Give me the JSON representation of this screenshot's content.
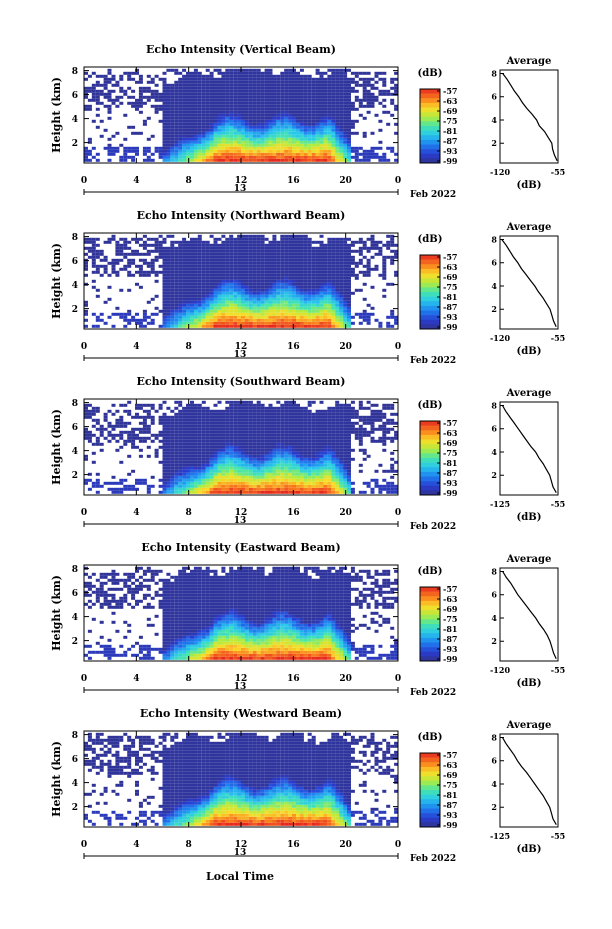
{
  "figure": {
    "xlabel": "Local Time",
    "date_label": "Feb 2022",
    "ylabel": "Height (km)",
    "colorbar_unit": "(dB)",
    "average_title": "Average",
    "average_unit": "(dB)"
  },
  "chart_data": [
    {
      "type": "heatmap",
      "title": "Echo Intensity (Vertical Beam)",
      "x_ticks": [
        "0",
        "4",
        "8",
        "12",
        "16",
        "20",
        "0"
      ],
      "day_marker": "13",
      "y_ticks": [
        "2",
        "4",
        "6",
        "8"
      ],
      "xlim": [
        0,
        24
      ],
      "ylim": [
        0.3,
        8.3
      ],
      "colorbar_ticks": [
        "-57",
        "-63",
        "-69",
        "-75",
        "-81",
        "-87",
        "-93",
        "-99"
      ],
      "color_range_db": [
        -99,
        -57
      ],
      "average": {
        "x_ticks": [
          "-120",
          "-55"
        ],
        "xlim": [
          -120,
          -55
        ],
        "ylim": [
          0.3,
          8.3
        ],
        "profile": [
          [
            0.5,
            -56
          ],
          [
            1,
            -59
          ],
          [
            1.5,
            -61
          ],
          [
            2,
            -62
          ],
          [
            2.5,
            -66
          ],
          [
            3,
            -70
          ],
          [
            3.5,
            -76
          ],
          [
            4,
            -79
          ],
          [
            4.5,
            -84
          ],
          [
            5,
            -90
          ],
          [
            5.5,
            -95
          ],
          [
            6,
            -99
          ],
          [
            6.5,
            -104
          ],
          [
            7,
            -108
          ],
          [
            7.5,
            -112
          ],
          [
            8,
            -117
          ]
        ]
      }
    },
    {
      "type": "heatmap",
      "title": "Echo Intensity (Northward Beam)",
      "x_ticks": [
        "0",
        "4",
        "8",
        "12",
        "16",
        "20",
        "0"
      ],
      "day_marker": "13",
      "y_ticks": [
        "2",
        "4",
        "6",
        "8"
      ],
      "xlim": [
        0,
        24
      ],
      "ylim": [
        0.3,
        8.3
      ],
      "colorbar_ticks": [
        "-57",
        "-63",
        "-69",
        "-75",
        "-81",
        "-87",
        "-93",
        "-99"
      ],
      "color_range_db": [
        -99,
        -57
      ],
      "average": {
        "x_ticks": [
          "-120",
          "-55"
        ],
        "xlim": [
          -120,
          -55
        ],
        "ylim": [
          0.3,
          8.3
        ],
        "profile": [
          [
            0.5,
            -57
          ],
          [
            1,
            -60
          ],
          [
            1.5,
            -62
          ],
          [
            2,
            -64
          ],
          [
            2.5,
            -68
          ],
          [
            3,
            -72
          ],
          [
            3.5,
            -77
          ],
          [
            4,
            -81
          ],
          [
            4.5,
            -86
          ],
          [
            5,
            -91
          ],
          [
            5.5,
            -96
          ],
          [
            6,
            -100
          ],
          [
            6.5,
            -105
          ],
          [
            7,
            -109
          ],
          [
            7.5,
            -113
          ],
          [
            8,
            -118
          ]
        ]
      }
    },
    {
      "type": "heatmap",
      "title": "Echo Intensity (Southward Beam)",
      "x_ticks": [
        "0",
        "4",
        "8",
        "12",
        "16",
        "20",
        "0"
      ],
      "day_marker": "13",
      "y_ticks": [
        "2",
        "4",
        "6",
        "8"
      ],
      "xlim": [
        0,
        24
      ],
      "ylim": [
        0.3,
        8.3
      ],
      "colorbar_ticks": [
        "-57",
        "-63",
        "-69",
        "-75",
        "-81",
        "-87",
        "-93",
        "-99"
      ],
      "color_range_db": [
        -99,
        -57
      ],
      "average": {
        "x_ticks": [
          "-125",
          "-55"
        ],
        "xlim": [
          -125,
          -55
        ],
        "ylim": [
          0.3,
          8.3
        ],
        "profile": [
          [
            0.5,
            -57
          ],
          [
            1,
            -61
          ],
          [
            1.5,
            -63
          ],
          [
            2,
            -65
          ],
          [
            2.5,
            -69
          ],
          [
            3,
            -73
          ],
          [
            3.5,
            -78
          ],
          [
            4,
            -82
          ],
          [
            4.5,
            -88
          ],
          [
            5,
            -93
          ],
          [
            5.5,
            -98
          ],
          [
            6,
            -103
          ],
          [
            6.5,
            -108
          ],
          [
            7,
            -113
          ],
          [
            7.5,
            -118
          ],
          [
            8,
            -122
          ]
        ]
      }
    },
    {
      "type": "heatmap",
      "title": "Echo Intensity (Eastward Beam)",
      "x_ticks": [
        "0",
        "4",
        "8",
        "12",
        "16",
        "20",
        "0"
      ],
      "day_marker": "13",
      "y_ticks": [
        "2",
        "4",
        "6",
        "8"
      ],
      "xlim": [
        0,
        24
      ],
      "ylim": [
        0.3,
        8.3
      ],
      "colorbar_ticks": [
        "-57",
        "-63",
        "-69",
        "-75",
        "-81",
        "-87",
        "-93",
        "-99"
      ],
      "color_range_db": [
        -99,
        -57
      ],
      "average": {
        "x_ticks": [
          "-120",
          "-55"
        ],
        "xlim": [
          -120,
          -55
        ],
        "ylim": [
          0.3,
          8.3
        ],
        "profile": [
          [
            0.5,
            -57
          ],
          [
            1,
            -60
          ],
          [
            1.5,
            -62
          ],
          [
            2,
            -64
          ],
          [
            2.5,
            -67
          ],
          [
            3,
            -71
          ],
          [
            3.5,
            -76
          ],
          [
            4,
            -80
          ],
          [
            4.5,
            -85
          ],
          [
            5,
            -90
          ],
          [
            5.5,
            -95
          ],
          [
            6,
            -100
          ],
          [
            6.5,
            -104
          ],
          [
            7,
            -108
          ],
          [
            7.5,
            -113
          ],
          [
            8,
            -117
          ]
        ]
      }
    },
    {
      "type": "heatmap",
      "title": "Echo Intensity (Westward Beam)",
      "x_ticks": [
        "0",
        "4",
        "8",
        "12",
        "16",
        "20",
        "0"
      ],
      "day_marker": "13",
      "y_ticks": [
        "2",
        "4",
        "6",
        "8"
      ],
      "xlim": [
        0,
        24
      ],
      "ylim": [
        0.3,
        8.3
      ],
      "colorbar_ticks": [
        "-57",
        "-63",
        "-69",
        "-75",
        "-81",
        "-87",
        "-93",
        "-99"
      ],
      "color_range_db": [
        -99,
        -57
      ],
      "average": {
        "x_ticks": [
          "-125",
          "-55"
        ],
        "xlim": [
          -125,
          -55
        ],
        "ylim": [
          0.3,
          8.3
        ],
        "profile": [
          [
            0.5,
            -57
          ],
          [
            1,
            -61
          ],
          [
            1.5,
            -63
          ],
          [
            2,
            -65
          ],
          [
            2.5,
            -69
          ],
          [
            3,
            -73
          ],
          [
            3.5,
            -78
          ],
          [
            4,
            -83
          ],
          [
            4.5,
            -88
          ],
          [
            5,
            -93
          ],
          [
            5.5,
            -99
          ],
          [
            6,
            -104
          ],
          [
            6.5,
            -108
          ],
          [
            7,
            -113
          ],
          [
            7.5,
            -118
          ],
          [
            8,
            -122
          ]
        ]
      }
    }
  ]
}
